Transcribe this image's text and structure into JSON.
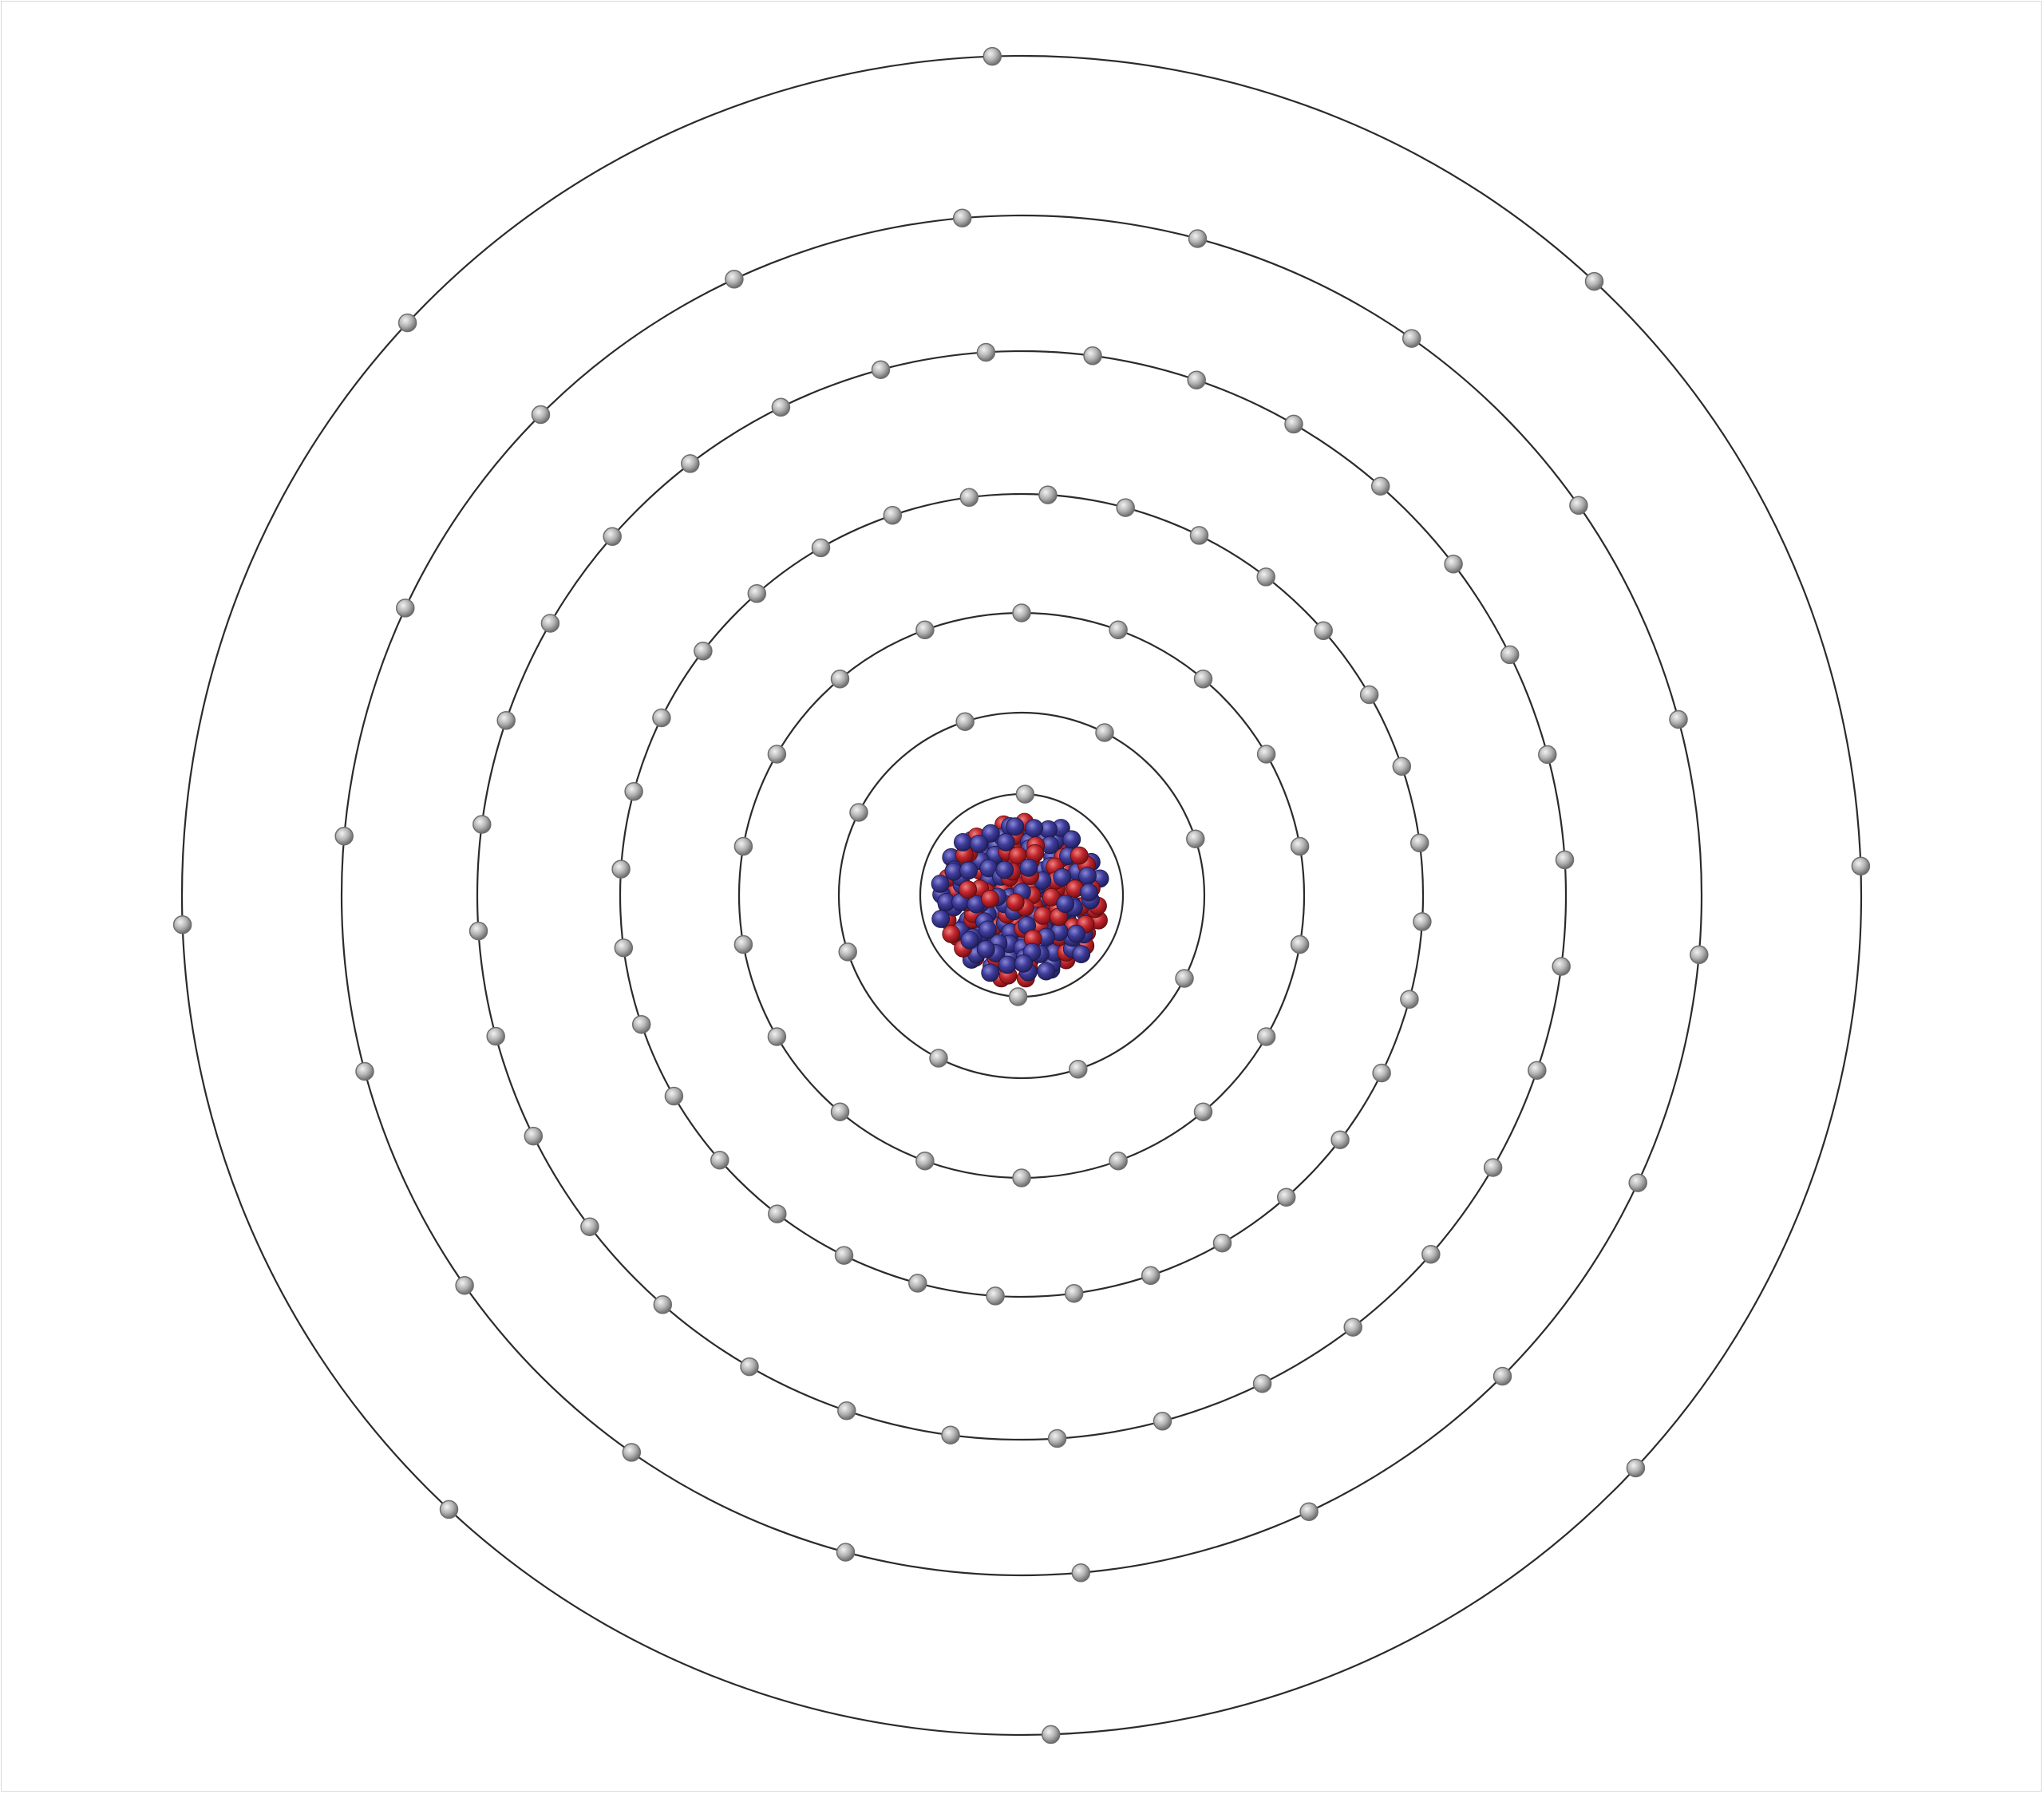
{
  "diagram": {
    "type": "bohr-atom-model",
    "electron_shells": [
      2,
      8,
      18,
      32,
      32,
      18,
      8
    ],
    "total_electrons": 118,
    "nucleus": {
      "particles": [
        "proton",
        "neutron"
      ]
    },
    "colors": {
      "background": "#ffffff",
      "frame": "#d9d9d9",
      "orbit": "#2b2b2b",
      "electron": "#b3b3b3",
      "electron_highlight": "#f2f2f2",
      "electron_shadow": "#6e6e6e",
      "proton": "#c0272d",
      "proton_highlight": "#f08080",
      "neutron": "#3e3c9a",
      "neutron_highlight": "#8a88d6",
      "nucleus_outline": "#2b2b2b"
    }
  }
}
